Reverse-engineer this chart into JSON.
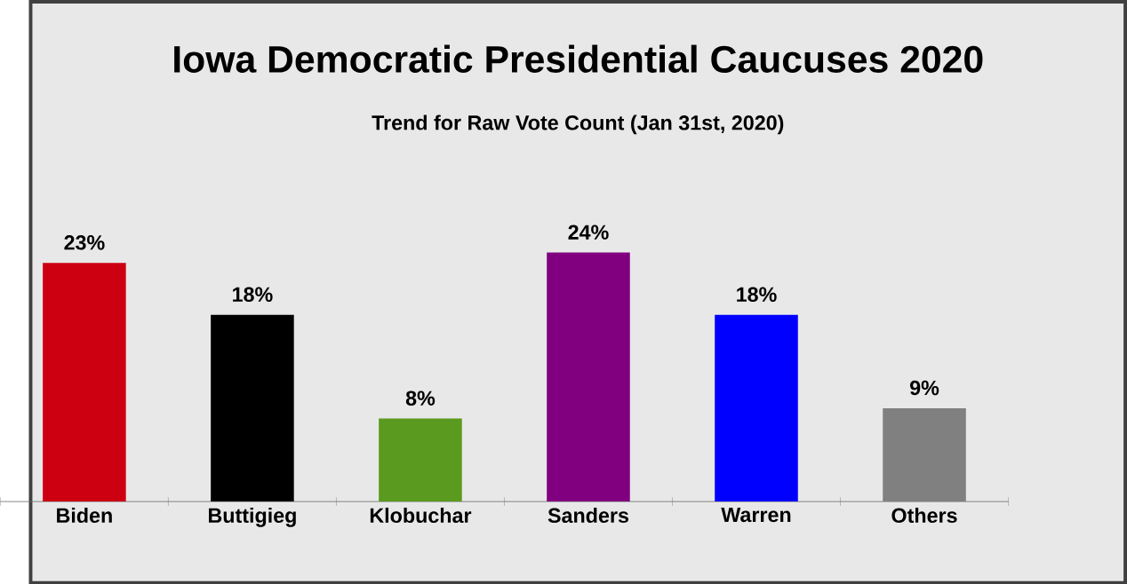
{
  "chart_data": {
    "type": "bar",
    "title": "Iowa Democratic Presidential Caucuses 2020",
    "subtitle": "Trend for Raw Vote Count  (Jan 31st, 2020)",
    "categories": [
      "Biden",
      "Buttigieg",
      "Klobuchar",
      "Sanders",
      "Warren",
      "Others"
    ],
    "values": [
      23,
      18,
      8,
      24,
      18,
      9
    ],
    "value_labels": [
      "23%",
      "18%",
      "8%",
      "24%",
      "18%",
      "9%"
    ],
    "colors": [
      "#cc0010",
      "#000000",
      "#5a9a1e",
      "#800080",
      "#0000ff",
      "#808080"
    ]
  }
}
